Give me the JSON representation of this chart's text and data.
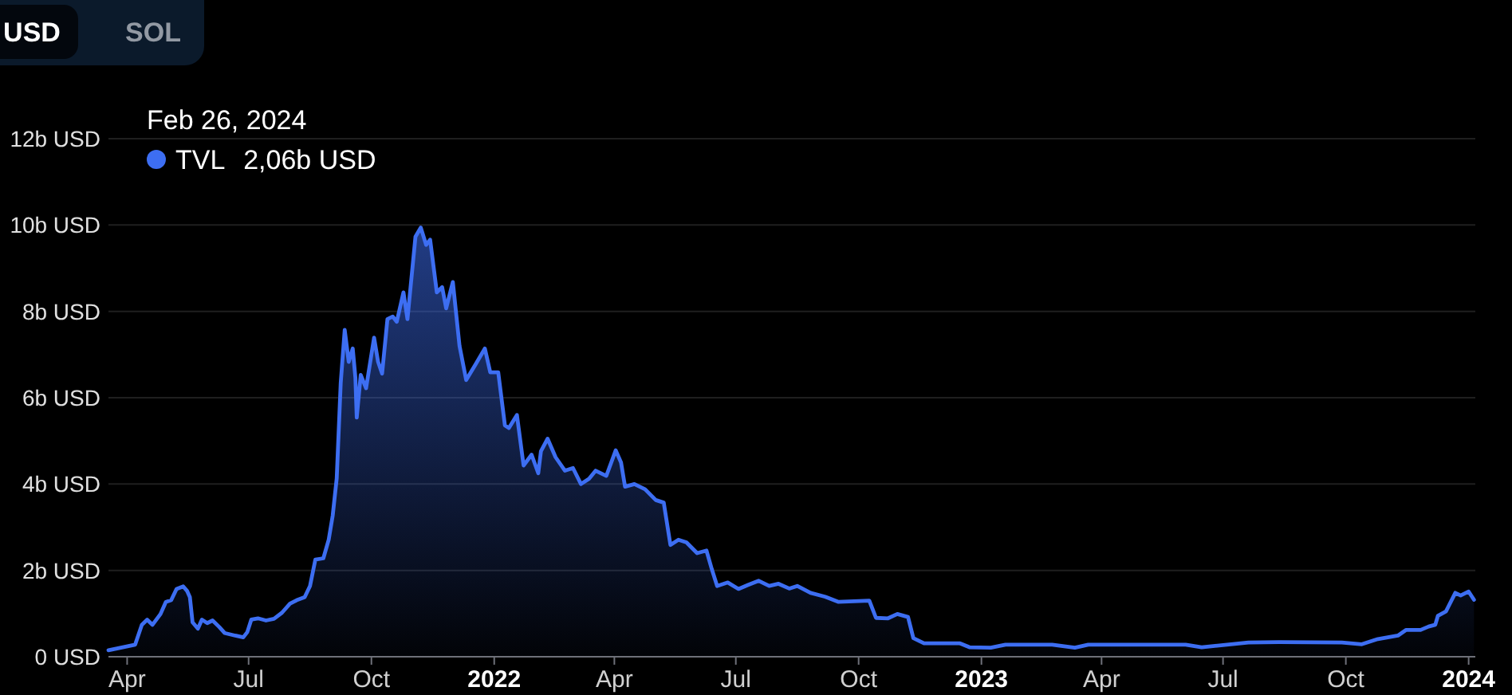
{
  "chart_data": {
    "type": "area",
    "annotations": [
      "USD",
      "SOL",
      "Feb 26, 2024",
      "2,06b USD"
    ],
    "x": [
      "2021-03-18",
      "2021-04-07",
      "2021-04-12",
      "2021-04-16",
      "2021-04-20",
      "2021-04-26",
      "2021-04-30",
      "2021-05-04",
      "2021-05-08",
      "2021-05-13",
      "2021-05-16",
      "2021-05-18",
      "2021-05-20",
      "2021-05-24",
      "2021-05-27",
      "2021-05-31",
      "2021-06-04",
      "2021-06-09",
      "2021-06-13",
      "2021-06-21",
      "2021-06-27",
      "2021-06-30",
      "2021-07-03",
      "2021-07-08",
      "2021-07-14",
      "2021-07-20",
      "2021-07-26",
      "2021-08-01",
      "2021-08-06",
      "2021-08-12",
      "2021-08-16",
      "2021-08-20",
      "2021-08-26",
      "2021-08-30",
      "2021-09-02",
      "2021-09-05",
      "2021-09-08",
      "2021-09-11",
      "2021-09-14",
      "2021-09-17",
      "2021-09-19",
      "2021-09-20",
      "2021-09-23",
      "2021-09-27",
      "2021-10-03",
      "2021-10-06",
      "2021-10-09",
      "2021-10-13",
      "2021-10-17",
      "2021-10-20",
      "2021-10-25",
      "2021-10-28",
      "2021-11-03",
      "2021-11-07",
      "2021-11-11",
      "2021-11-14",
      "2021-11-19",
      "2021-11-23",
      "2021-11-26",
      "2021-12-01",
      "2021-12-06",
      "2021-12-11",
      "2021-12-18",
      "2021-12-25",
      "2021-12-29",
      "2022-01-04",
      "2022-01-09",
      "2022-01-12",
      "2022-01-18",
      "2022-01-23",
      "2022-01-29",
      "2022-02-03",
      "2022-02-05",
      "2022-02-10",
      "2022-02-16",
      "2022-02-23",
      "2022-03-01",
      "2022-03-07",
      "2022-03-13",
      "2022-03-18",
      "2022-03-26",
      "2022-04-02",
      "2022-04-06",
      "2022-04-09",
      "2022-04-16",
      "2022-04-24",
      "2022-05-02",
      "2022-05-08",
      "2022-05-13",
      "2022-05-19",
      "2022-05-25",
      "2022-06-02",
      "2022-06-09",
      "2022-06-13",
      "2022-06-17",
      "2022-06-25",
      "2022-07-03",
      "2022-07-10",
      "2022-07-18",
      "2022-07-26",
      "2022-08-02",
      "2022-08-10",
      "2022-08-16",
      "2022-08-26",
      "2022-09-06",
      "2022-09-16",
      "2022-10-09",
      "2022-10-14",
      "2022-10-23",
      "2022-10-30",
      "2022-11-07",
      "2022-11-11",
      "2022-11-19",
      "2022-12-16",
      "2022-12-23",
      "2023-01-08",
      "2023-01-19",
      "2023-02-23",
      "2023-03-12",
      "2023-03-22",
      "2023-06-03",
      "2023-06-15",
      "2023-07-20",
      "2023-08-12",
      "2023-09-28",
      "2023-10-13",
      "2023-10-25",
      "2023-11-09",
      "2023-11-15",
      "2023-11-26",
      "2023-12-02",
      "2023-12-07",
      "2023-12-09",
      "2023-12-15",
      "2023-12-22",
      "2023-12-26",
      "2024-01-01",
      "2024-01-05"
    ],
    "series": [
      {
        "name": "TVL",
        "color": "#3d6ef2",
        "values": [
          0.15,
          0.28,
          0.74,
          0.86,
          0.74,
          0.99,
          1.27,
          1.31,
          1.57,
          1.63,
          1.52,
          1.38,
          0.8,
          0.65,
          0.86,
          0.78,
          0.84,
          0.69,
          0.55,
          0.49,
          0.45,
          0.57,
          0.86,
          0.89,
          0.84,
          0.88,
          1.02,
          1.23,
          1.31,
          1.38,
          1.64,
          2.25,
          2.28,
          2.71,
          3.27,
          4.13,
          6.34,
          7.57,
          6.83,
          7.14,
          6.46,
          5.54,
          6.53,
          6.22,
          7.39,
          6.83,
          6.56,
          7.82,
          7.88,
          7.76,
          8.44,
          7.82,
          9.73,
          9.94,
          9.54,
          9.66,
          8.44,
          8.56,
          8.07,
          8.68,
          7.2,
          6.41,
          6.77,
          7.14,
          6.59,
          6.59,
          5.36,
          5.3,
          5.6,
          4.43,
          4.68,
          4.25,
          4.76,
          5.05,
          4.62,
          4.31,
          4.37,
          4.0,
          4.12,
          4.31,
          4.19,
          4.78,
          4.5,
          3.94,
          4.0,
          3.88,
          3.63,
          3.57,
          2.59,
          2.71,
          2.65,
          2.4,
          2.46,
          2.03,
          1.64,
          1.72,
          1.57,
          1.66,
          1.76,
          1.64,
          1.69,
          1.58,
          1.64,
          1.48,
          1.39,
          1.27,
          1.3,
          0.9,
          0.89,
          0.99,
          0.92,
          0.43,
          0.31,
          0.31,
          0.22,
          0.21,
          0.28,
          0.28,
          0.21,
          0.28,
          0.28,
          0.22,
          0.33,
          0.34,
          0.33,
          0.29,
          0.41,
          0.49,
          0.62,
          0.62,
          0.7,
          0.74,
          0.95,
          1.05,
          1.48,
          1.42,
          1.51,
          1.32
        ]
      }
    ],
    "xlim": [
      "2021-03-18",
      "2024-01-06"
    ],
    "xticks": [
      {
        "value": "2021-04-01",
        "label": "Apr"
      },
      {
        "value": "2021-07-01",
        "label": "Jul"
      },
      {
        "value": "2021-10-01",
        "label": "Oct"
      },
      {
        "value": "2022-01-01",
        "label": "2022"
      },
      {
        "value": "2022-04-01",
        "label": "Apr"
      },
      {
        "value": "2022-07-01",
        "label": "Jul"
      },
      {
        "value": "2022-10-01",
        "label": "Oct"
      },
      {
        "value": "2023-01-01",
        "label": "2023"
      },
      {
        "value": "2023-04-01",
        "label": "Apr"
      },
      {
        "value": "2023-07-01",
        "label": "Jul"
      },
      {
        "value": "2023-10-01",
        "label": "Oct"
      },
      {
        "value": "2024-01-01",
        "label": "2024"
      }
    ],
    "ylim": [
      0,
      12
    ],
    "yticks": [
      {
        "value": 0,
        "label": "0 USD"
      },
      {
        "value": 2,
        "label": "2b USD"
      },
      {
        "value": 4,
        "label": "4b USD"
      },
      {
        "value": 6,
        "label": "6b USD"
      },
      {
        "value": 8,
        "label": "8b USD"
      },
      {
        "value": 10,
        "label": "10b USD"
      },
      {
        "value": 12,
        "label": "12b USD"
      }
    ],
    "grid": "y",
    "legend": "top left",
    "marker": "none"
  }
}
